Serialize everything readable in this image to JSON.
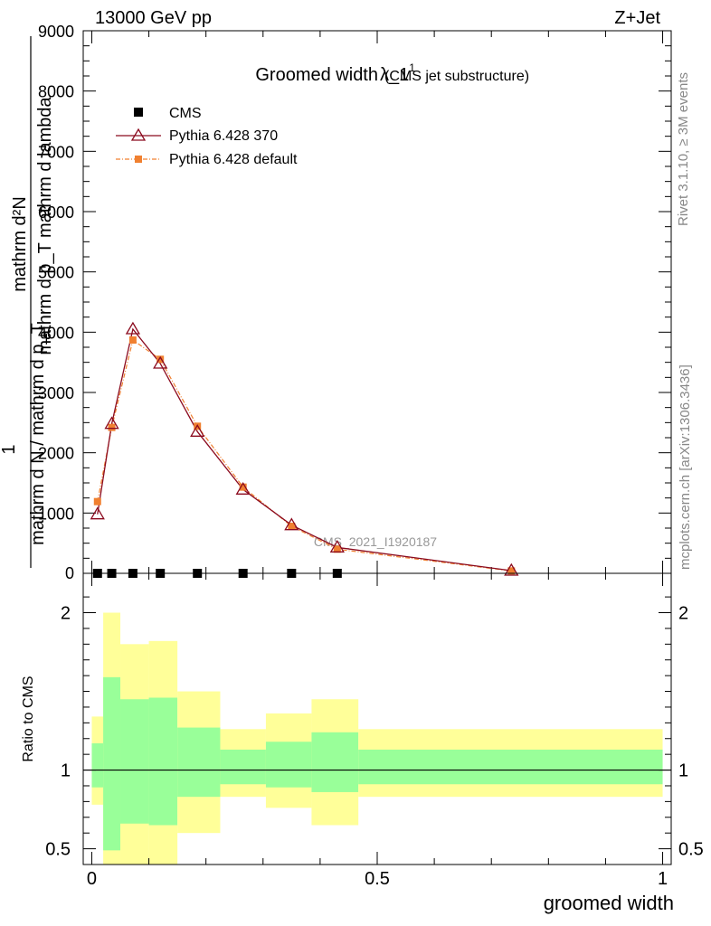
{
  "header": {
    "energy": "13000 GeV pp",
    "process": "Z+Jet"
  },
  "side_labels": {
    "rivet": "Rivet 3.1.10, ≥ 3M events",
    "mcplots": "mcplots.cern.ch [arXiv:1306.3436]"
  },
  "watermark": "CMS_2021_I1920187",
  "chart_data": [
    {
      "type": "line",
      "title": "Groomed width",
      "title_symbol": "λ_1",
      "title_superscript": "1",
      "subtitle": "(CMS jet substructure)",
      "ylabel_top": "mathrm d²N",
      "ylabel_top_den": "mathrm d p_T mathrm d lambda",
      "ylabel_bottom": "mathrm d N / mathrm d p_T",
      "ylabel_one": "1",
      "xlim": [
        -0.015,
        1.015
      ],
      "ylim": [
        0,
        9000
      ],
      "y_ticks": [
        1000,
        2000,
        3000,
        4000,
        5000,
        6000,
        7000,
        8000,
        9000
      ],
      "y_tick_labels": [
        "1000",
        "2000",
        "3000",
        "4000",
        "5000",
        "6000",
        "7000",
        "8000",
        "9000"
      ],
      "zero_label": "0",
      "series": [
        {
          "name": "CMS",
          "marker": "square",
          "color": "#000000",
          "x": [
            0.01,
            0.035,
            0.072,
            0.12,
            0.185,
            0.265,
            0.35,
            0.43
          ],
          "y": [
            0,
            0,
            0,
            0,
            0,
            0,
            0,
            0
          ]
        },
        {
          "name": "Pythia 6.428 370",
          "marker": "triangle-open",
          "color": "#8b0a1e",
          "x": [
            0.01,
            0.035,
            0.072,
            0.12,
            0.185,
            0.265,
            0.35,
            0.43,
            0.735
          ],
          "y": [
            980,
            2480,
            4050,
            3480,
            2350,
            1390,
            800,
            430,
            45
          ]
        },
        {
          "name": "Pythia 6.428 default",
          "marker": "square-filled",
          "color": "#f08030",
          "x": [
            0.01,
            0.035,
            0.072,
            0.12,
            0.185,
            0.265,
            0.35,
            0.43,
            0.735
          ],
          "y": [
            1190,
            2420,
            3870,
            3550,
            2440,
            1430,
            780,
            400,
            40
          ]
        }
      ]
    },
    {
      "type": "area",
      "ylabel": "Ratio to CMS",
      "xlabel": "groomed width",
      "xlim": [
        -0.015,
        1.015
      ],
      "ylim": [
        0.4,
        2.25
      ],
      "y_ticks": [
        0.5,
        1,
        2
      ],
      "y_tick_labels": [
        "0.5",
        "1",
        "2"
      ],
      "x_ticks": [
        0,
        0.5,
        1
      ],
      "x_tick_labels": [
        "0",
        "0.5",
        "1"
      ],
      "reference_line": 1,
      "bins": [
        {
          "lo": 0.0,
          "hi": 0.02,
          "in_lo": 0.89,
          "in_hi": 1.17,
          "out_lo": 0.78,
          "out_hi": 1.34
        },
        {
          "lo": 0.02,
          "hi": 0.05,
          "in_lo": 0.49,
          "in_hi": 1.59,
          "out_lo": 0.0,
          "out_hi": 2.0
        },
        {
          "lo": 0.05,
          "hi": 0.1,
          "in_lo": 0.66,
          "in_hi": 1.45,
          "out_lo": 0.0,
          "out_hi": 1.8
        },
        {
          "lo": 0.1,
          "hi": 0.15,
          "in_lo": 0.65,
          "in_hi": 1.46,
          "out_lo": 0.0,
          "out_hi": 1.82
        },
        {
          "lo": 0.15,
          "hi": 0.225,
          "in_lo": 0.83,
          "in_hi": 1.27,
          "out_lo": 0.6,
          "out_hi": 1.5
        },
        {
          "lo": 0.225,
          "hi": 0.305,
          "in_lo": 0.91,
          "in_hi": 1.13,
          "out_lo": 0.83,
          "out_hi": 1.26
        },
        {
          "lo": 0.305,
          "hi": 0.385,
          "in_lo": 0.89,
          "in_hi": 1.18,
          "out_lo": 0.76,
          "out_hi": 1.36
        },
        {
          "lo": 0.385,
          "hi": 0.467,
          "in_lo": 0.86,
          "in_hi": 1.24,
          "out_lo": 0.65,
          "out_hi": 1.45
        },
        {
          "lo": 0.467,
          "hi": 1.0,
          "in_lo": 0.91,
          "in_hi": 1.13,
          "out_lo": 0.83,
          "out_hi": 1.26
        }
      ],
      "band_colors": {
        "inner": "#99ff99",
        "outer": "#ffff99"
      }
    }
  ]
}
